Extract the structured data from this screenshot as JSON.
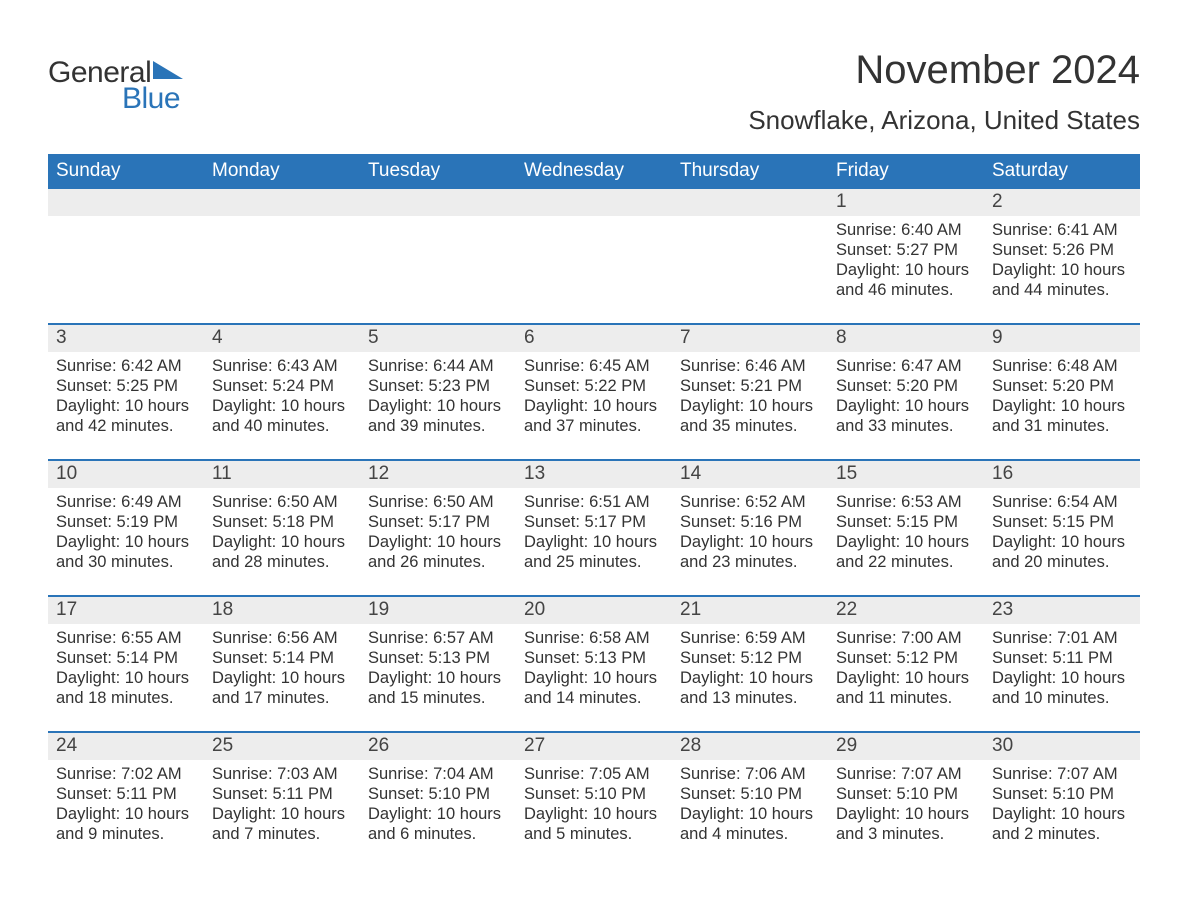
{
  "brand": {
    "text1": "General",
    "text2": "Blue",
    "accent_color": "#2a74b8"
  },
  "title": "November 2024",
  "location": "Snowflake, Arizona, United States",
  "colors": {
    "header_bg": "#2a74b8",
    "header_text": "#ffffff",
    "daynum_bg": "#ededed",
    "body_text": "#333333",
    "page_bg": "#ffffff"
  },
  "weekdays": [
    "Sunday",
    "Monday",
    "Tuesday",
    "Wednesday",
    "Thursday",
    "Friday",
    "Saturday"
  ],
  "weeks": [
    [
      {
        "n": "",
        "sunrise": "",
        "sunset": "",
        "daylight": ""
      },
      {
        "n": "",
        "sunrise": "",
        "sunset": "",
        "daylight": ""
      },
      {
        "n": "",
        "sunrise": "",
        "sunset": "",
        "daylight": ""
      },
      {
        "n": "",
        "sunrise": "",
        "sunset": "",
        "daylight": ""
      },
      {
        "n": "",
        "sunrise": "",
        "sunset": "",
        "daylight": ""
      },
      {
        "n": "1",
        "sunrise": "Sunrise: 6:40 AM",
        "sunset": "Sunset: 5:27 PM",
        "daylight": "Daylight: 10 hours and 46 minutes."
      },
      {
        "n": "2",
        "sunrise": "Sunrise: 6:41 AM",
        "sunset": "Sunset: 5:26 PM",
        "daylight": "Daylight: 10 hours and 44 minutes."
      }
    ],
    [
      {
        "n": "3",
        "sunrise": "Sunrise: 6:42 AM",
        "sunset": "Sunset: 5:25 PM",
        "daylight": "Daylight: 10 hours and 42 minutes."
      },
      {
        "n": "4",
        "sunrise": "Sunrise: 6:43 AM",
        "sunset": "Sunset: 5:24 PM",
        "daylight": "Daylight: 10 hours and 40 minutes."
      },
      {
        "n": "5",
        "sunrise": "Sunrise: 6:44 AM",
        "sunset": "Sunset: 5:23 PM",
        "daylight": "Daylight: 10 hours and 39 minutes."
      },
      {
        "n": "6",
        "sunrise": "Sunrise: 6:45 AM",
        "sunset": "Sunset: 5:22 PM",
        "daylight": "Daylight: 10 hours and 37 minutes."
      },
      {
        "n": "7",
        "sunrise": "Sunrise: 6:46 AM",
        "sunset": "Sunset: 5:21 PM",
        "daylight": "Daylight: 10 hours and 35 minutes."
      },
      {
        "n": "8",
        "sunrise": "Sunrise: 6:47 AM",
        "sunset": "Sunset: 5:20 PM",
        "daylight": "Daylight: 10 hours and 33 minutes."
      },
      {
        "n": "9",
        "sunrise": "Sunrise: 6:48 AM",
        "sunset": "Sunset: 5:20 PM",
        "daylight": "Daylight: 10 hours and 31 minutes."
      }
    ],
    [
      {
        "n": "10",
        "sunrise": "Sunrise: 6:49 AM",
        "sunset": "Sunset: 5:19 PM",
        "daylight": "Daylight: 10 hours and 30 minutes."
      },
      {
        "n": "11",
        "sunrise": "Sunrise: 6:50 AM",
        "sunset": "Sunset: 5:18 PM",
        "daylight": "Daylight: 10 hours and 28 minutes."
      },
      {
        "n": "12",
        "sunrise": "Sunrise: 6:50 AM",
        "sunset": "Sunset: 5:17 PM",
        "daylight": "Daylight: 10 hours and 26 minutes."
      },
      {
        "n": "13",
        "sunrise": "Sunrise: 6:51 AM",
        "sunset": "Sunset: 5:17 PM",
        "daylight": "Daylight: 10 hours and 25 minutes."
      },
      {
        "n": "14",
        "sunrise": "Sunrise: 6:52 AM",
        "sunset": "Sunset: 5:16 PM",
        "daylight": "Daylight: 10 hours and 23 minutes."
      },
      {
        "n": "15",
        "sunrise": "Sunrise: 6:53 AM",
        "sunset": "Sunset: 5:15 PM",
        "daylight": "Daylight: 10 hours and 22 minutes."
      },
      {
        "n": "16",
        "sunrise": "Sunrise: 6:54 AM",
        "sunset": "Sunset: 5:15 PM",
        "daylight": "Daylight: 10 hours and 20 minutes."
      }
    ],
    [
      {
        "n": "17",
        "sunrise": "Sunrise: 6:55 AM",
        "sunset": "Sunset: 5:14 PM",
        "daylight": "Daylight: 10 hours and 18 minutes."
      },
      {
        "n": "18",
        "sunrise": "Sunrise: 6:56 AM",
        "sunset": "Sunset: 5:14 PM",
        "daylight": "Daylight: 10 hours and 17 minutes."
      },
      {
        "n": "19",
        "sunrise": "Sunrise: 6:57 AM",
        "sunset": "Sunset: 5:13 PM",
        "daylight": "Daylight: 10 hours and 15 minutes."
      },
      {
        "n": "20",
        "sunrise": "Sunrise: 6:58 AM",
        "sunset": "Sunset: 5:13 PM",
        "daylight": "Daylight: 10 hours and 14 minutes."
      },
      {
        "n": "21",
        "sunrise": "Sunrise: 6:59 AM",
        "sunset": "Sunset: 5:12 PM",
        "daylight": "Daylight: 10 hours and 13 minutes."
      },
      {
        "n": "22",
        "sunrise": "Sunrise: 7:00 AM",
        "sunset": "Sunset: 5:12 PM",
        "daylight": "Daylight: 10 hours and 11 minutes."
      },
      {
        "n": "23",
        "sunrise": "Sunrise: 7:01 AM",
        "sunset": "Sunset: 5:11 PM",
        "daylight": "Daylight: 10 hours and 10 minutes."
      }
    ],
    [
      {
        "n": "24",
        "sunrise": "Sunrise: 7:02 AM",
        "sunset": "Sunset: 5:11 PM",
        "daylight": "Daylight: 10 hours and 9 minutes."
      },
      {
        "n": "25",
        "sunrise": "Sunrise: 7:03 AM",
        "sunset": "Sunset: 5:11 PM",
        "daylight": "Daylight: 10 hours and 7 minutes."
      },
      {
        "n": "26",
        "sunrise": "Sunrise: 7:04 AM",
        "sunset": "Sunset: 5:10 PM",
        "daylight": "Daylight: 10 hours and 6 minutes."
      },
      {
        "n": "27",
        "sunrise": "Sunrise: 7:05 AM",
        "sunset": "Sunset: 5:10 PM",
        "daylight": "Daylight: 10 hours and 5 minutes."
      },
      {
        "n": "28",
        "sunrise": "Sunrise: 7:06 AM",
        "sunset": "Sunset: 5:10 PM",
        "daylight": "Daylight: 10 hours and 4 minutes."
      },
      {
        "n": "29",
        "sunrise": "Sunrise: 7:07 AM",
        "sunset": "Sunset: 5:10 PM",
        "daylight": "Daylight: 10 hours and 3 minutes."
      },
      {
        "n": "30",
        "sunrise": "Sunrise: 7:07 AM",
        "sunset": "Sunset: 5:10 PM",
        "daylight": "Daylight: 10 hours and 2 minutes."
      }
    ]
  ]
}
